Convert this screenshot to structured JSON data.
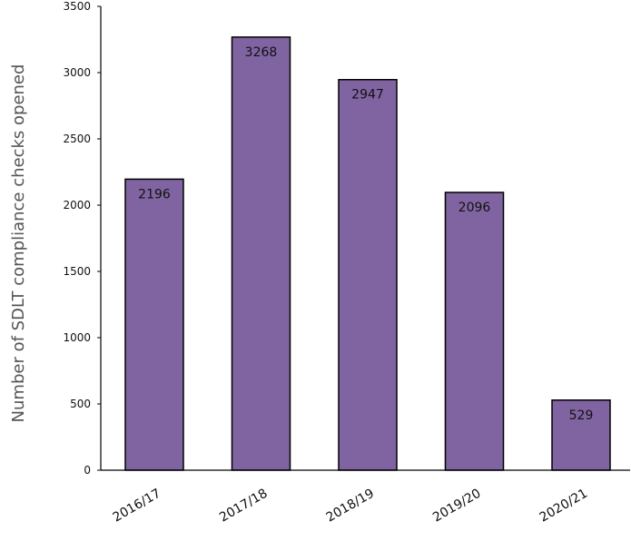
{
  "chart_data": {
    "type": "bar",
    "title": "",
    "xlabel": "",
    "ylabel": "Number of SDLT compliance checks opened",
    "categories": [
      "2016/17",
      "2017/18",
      "2018/19",
      "2019/20",
      "2020/21"
    ],
    "values": [
      2196,
      3268,
      2947,
      2096,
      529
    ],
    "data_labels": [
      "2196",
      "3268",
      "2947",
      "2096",
      "529"
    ],
    "ylim": [
      0,
      3500
    ],
    "yticks": [
      0,
      500,
      1000,
      1500,
      2000,
      2500,
      3000,
      3500
    ],
    "ytick_labels": [
      "0",
      "500",
      "1000",
      "1500",
      "2000",
      "2500",
      "3000",
      "3500"
    ],
    "grid": false,
    "legend": "none",
    "colors": {
      "bar_fill": "#8064a2",
      "bar_stroke": "#000000",
      "axis": "#000000",
      "ylabel_text": "#555555"
    }
  }
}
